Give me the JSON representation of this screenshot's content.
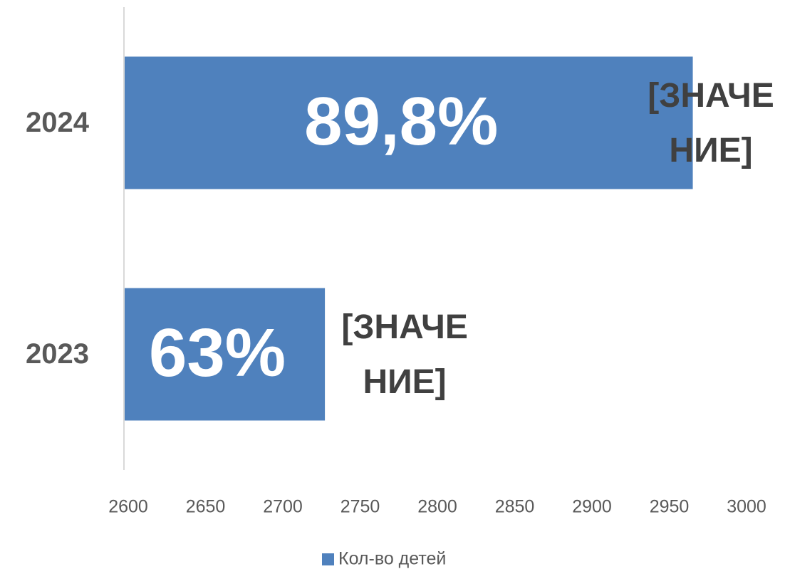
{
  "chart_data": {
    "type": "bar",
    "orientation": "horizontal",
    "categories": [
      "2023",
      "2024"
    ],
    "series": [
      {
        "name": "Кол-во детей",
        "color": "#4f81bd",
        "values": [
          2730,
          2968
        ]
      }
    ],
    "inner_labels": [
      "63%",
      "89,8%"
    ],
    "outer_labels": [
      [
        "[ЗНАЧЕ",
        "НИЕ]"
      ],
      [
        "[ЗНАЧЕ",
        "НИЕ]"
      ]
    ],
    "xlim": [
      2600,
      3000
    ],
    "xticks": [
      2600,
      2650,
      2700,
      2750,
      2800,
      2850,
      2900,
      2950,
      3000
    ],
    "grid": false,
    "legend": "bottom"
  }
}
